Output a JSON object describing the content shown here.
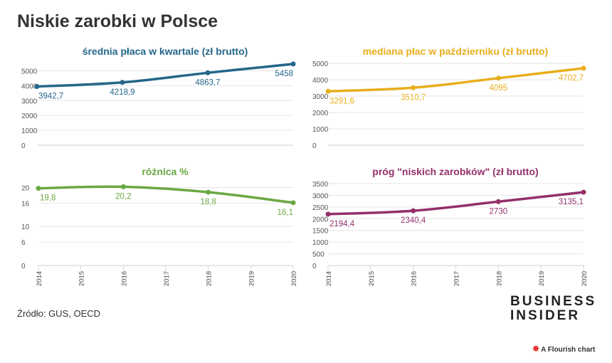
{
  "header": {
    "title": "Niskie zarobki w Polsce"
  },
  "footer": {
    "source": "Źródło: GUS, OECD",
    "logo_line1": "BUSINESS",
    "logo_line2": "INSIDER",
    "flourish": "A Flourish chart"
  },
  "colors": {
    "blue": "#24668a",
    "yellow": "#e8ae1d",
    "green": "#6aa843",
    "purple": "#93306a"
  },
  "chart_data": [
    {
      "type": "line",
      "title": "średnia płaca w kwartale (zł brutto)",
      "x": [
        2014,
        2016,
        2018,
        2020
      ],
      "values": [
        3942.7,
        4218.9,
        4863.7,
        5458
      ],
      "value_labels": [
        "3942,7",
        "4218,9",
        "4863,7",
        "5458"
      ],
      "yticks": [
        0,
        1000,
        2000,
        3000,
        4000,
        5000
      ],
      "ylim": [
        0,
        5500
      ],
      "xlim": [
        2014,
        2020
      ],
      "xticks": [],
      "color": "#24668a",
      "grid": true
    },
    {
      "type": "line",
      "title": "mediana płac w październiku (zł brutto)",
      "x": [
        2014,
        2016,
        2018,
        2020
      ],
      "values": [
        3291.6,
        3510.7,
        4095,
        4702.7
      ],
      "value_labels": [
        "3291,6",
        "3510,7",
        "4095",
        "4702,7"
      ],
      "yticks": [
        0,
        1000,
        2000,
        3000,
        4000,
        5000
      ],
      "ylim": [
        0,
        5000
      ],
      "xlim": [
        2014,
        2020
      ],
      "xticks": [],
      "color": "#e8ae1d",
      "grid": true
    },
    {
      "type": "line",
      "title": "różnica %",
      "x": [
        2014,
        2016,
        2018,
        2020
      ],
      "values": [
        19.8,
        20.2,
        18.8,
        16.1
      ],
      "value_labels": [
        "19,8",
        "20,2",
        "18,8",
        "16,1"
      ],
      "yticks": [
        0,
        6,
        10,
        16,
        20
      ],
      "ylim": [
        0,
        21
      ],
      "xlim": [
        2014,
        2020
      ],
      "xticks": [
        "2014",
        "2015",
        "2016",
        "2017",
        "2018",
        "2019",
        "2020"
      ],
      "color": "#6aa843",
      "grid": true
    },
    {
      "type": "line",
      "title": "próg \"niskich zarobków\" (zł brutto)",
      "x": [
        2014,
        2016,
        2018,
        2020
      ],
      "values": [
        2194.4,
        2340.4,
        2730,
        3135.1
      ],
      "value_labels": [
        "2194,4",
        "2340,4",
        "2730",
        "3135,1"
      ],
      "yticks": [
        0,
        500,
        1000,
        1500,
        2000,
        2500,
        3000,
        3500
      ],
      "ylim": [
        0,
        3500
      ],
      "xlim": [
        2014,
        2020
      ],
      "xticks": [
        "2014",
        "2015",
        "2016",
        "2017",
        "2018",
        "2019",
        "2020"
      ],
      "color": "#93306a",
      "grid": true
    }
  ]
}
